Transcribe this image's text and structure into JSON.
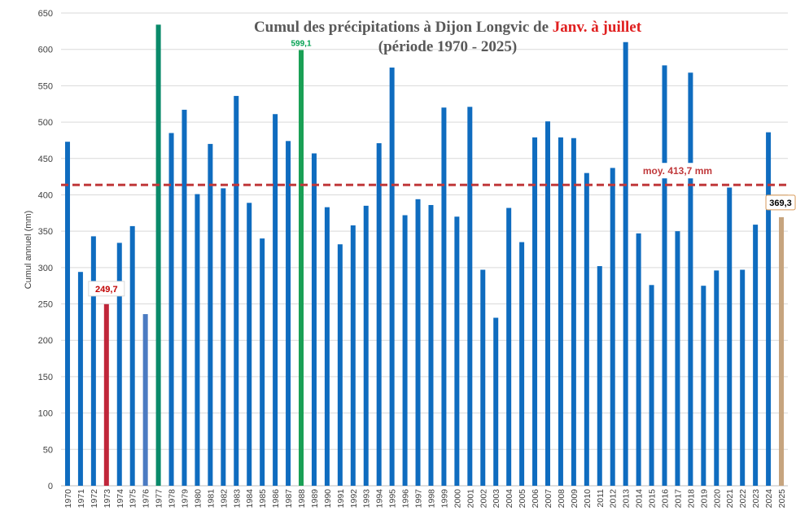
{
  "chart_data": {
    "type": "bar",
    "title": "Cumul des précipitations à Dijon Longvic de",
    "title_highlight": "Janv. à juillet",
    "subtitle": "(période 1970 - 2025)",
    "ylabel": "Cumul annuel (mm)",
    "ylim": [
      0,
      650
    ],
    "yticks": [
      0,
      50,
      100,
      150,
      200,
      250,
      300,
      350,
      400,
      450,
      500,
      550,
      600,
      650
    ],
    "grid": true,
    "categories": [
      "1970",
      "1971",
      "1972",
      "1973",
      "1974",
      "1975",
      "1976",
      "1977",
      "1978",
      "1979",
      "1980",
      "1981",
      "1982",
      "1983",
      "1984",
      "1985",
      "1986",
      "1987",
      "1988",
      "1989",
      "1990",
      "1991",
      "1992",
      "1993",
      "1994",
      "1995",
      "1996",
      "1997",
      "1998",
      "1999",
      "2000",
      "2001",
      "2002",
      "2003",
      "2004",
      "2005",
      "2006",
      "2007",
      "2008",
      "2009",
      "2010",
      "2011",
      "2012",
      "2013",
      "2014",
      "2015",
      "2016",
      "2017",
      "2018",
      "2019",
      "2020",
      "2021",
      "2022",
      "2023",
      "2024",
      "2025"
    ],
    "values": [
      473,
      294,
      343,
      249.7,
      334,
      357,
      236,
      634,
      485,
      517,
      401,
      470,
      409,
      536,
      389,
      340,
      511,
      474,
      599.1,
      457,
      383,
      332,
      358,
      385,
      471,
      575,
      372,
      394,
      386,
      520,
      370,
      521,
      297,
      231,
      382,
      335,
      479,
      501,
      479,
      478,
      430,
      302,
      437,
      610,
      347,
      276,
      578,
      350,
      568,
      275,
      296,
      410,
      297,
      359,
      486,
      369.3
    ],
    "highlights": [
      {
        "category": "1973",
        "color": "#c0263a",
        "label": "249,7",
        "label_color": "#c00000"
      },
      {
        "category": "1976",
        "color": "#4b7bc2"
      },
      {
        "category": "1977",
        "color": "#0a8a6a"
      },
      {
        "category": "1988",
        "color": "#1aa055",
        "label": "599,1",
        "label_color": "#00a050"
      },
      {
        "category": "2025",
        "color": "#c6a47e",
        "label": "369,3",
        "label_color": "#000000"
      }
    ],
    "average": {
      "value": 413.7,
      "label": "moy. 413,7 mm",
      "color": "#c0393b"
    },
    "bar_color": "#0f6cbf"
  }
}
